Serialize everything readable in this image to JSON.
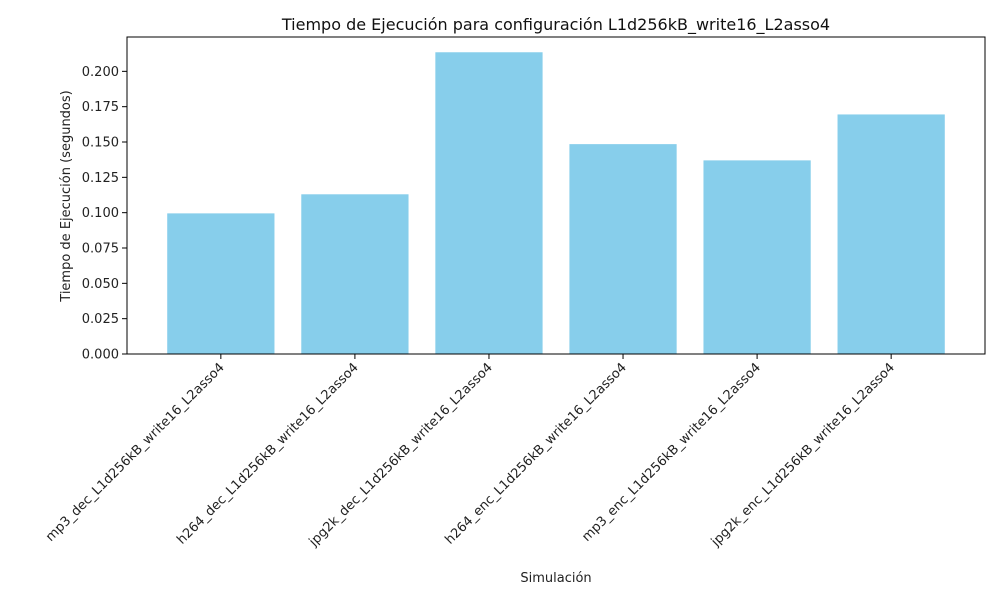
{
  "chart_data": {
    "type": "bar",
    "title": "Tiempo de Ejecución para configuración L1d256kB_write16_L2asso4",
    "xlabel": "Simulación",
    "ylabel": "Tiempo de Ejecución (segundos)",
    "categories": [
      "mp3_dec_L1d256kB_write16_L2asso4",
      "h264_dec_L1d256kB_write16_L2asso4",
      "jpg2k_dec_L1d256kB_write16_L2asso4",
      "h264_enc_L1d256kB_write16_L2asso4",
      "mp3_enc_L1d256kB_write16_L2asso4",
      "jpg2k_enc_L1d256kB_write16_L2asso4"
    ],
    "values": [
      0.0995,
      0.113,
      0.2135,
      0.1485,
      0.137,
      0.1695
    ],
    "ylim": [
      0,
      0.2243
    ],
    "yticks": [
      "0.000",
      "0.025",
      "0.050",
      "0.075",
      "0.100",
      "0.125",
      "0.150",
      "0.175",
      "0.200"
    ],
    "bar_color": "#87ceeb",
    "grid": false,
    "legend": "none"
  }
}
